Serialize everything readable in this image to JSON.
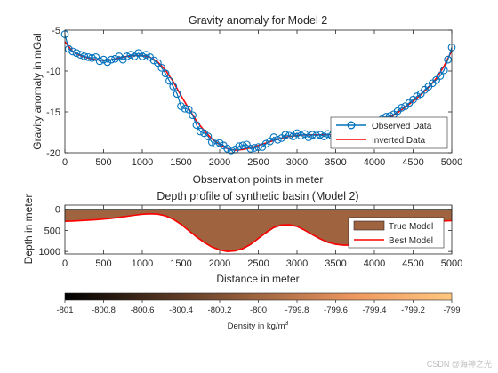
{
  "chart_data": [
    {
      "type": "line",
      "title": "Gravity anomaly for Model 2",
      "xlabel": "Observation points in meter",
      "ylabel": "Gravity anomaly in mGal",
      "xlim": [
        0,
        5000
      ],
      "ylim": [
        -20,
        -5
      ],
      "xticks": [
        "0",
        "500",
        "1000",
        "1500",
        "2000",
        "2500",
        "3000",
        "3500",
        "4000",
        "4500",
        "5000"
      ],
      "yticks": [
        "-5",
        "-10",
        "-15",
        "-20"
      ],
      "legend": {
        "position": "bottom-right",
        "entries": [
          "Observed Data",
          "Inverted Data"
        ]
      },
      "series": [
        {
          "name": "Observed Data",
          "style": "line-with-circle-markers",
          "color": "#0072bd",
          "x": [
            0,
            50,
            100,
            150,
            200,
            250,
            300,
            350,
            400,
            450,
            500,
            550,
            600,
            650,
            700,
            750,
            800,
            850,
            900,
            950,
            1000,
            1050,
            1100,
            1150,
            1200,
            1250,
            1300,
            1350,
            1400,
            1450,
            1500,
            1550,
            1600,
            1650,
            1700,
            1750,
            1800,
            1850,
            1900,
            1950,
            2000,
            2050,
            2100,
            2150,
            2200,
            2250,
            2300,
            2350,
            2400,
            2450,
            2500,
            2550,
            2600,
            2650,
            2700,
            2750,
            2800,
            2850,
            2900,
            2950,
            3000,
            3050,
            3100,
            3150,
            3200,
            3250,
            3300,
            3350,
            3400,
            3450,
            3500,
            3550,
            3600,
            3650,
            3700,
            3750,
            3800,
            3850,
            3900,
            3950,
            4000,
            4050,
            4100,
            4150,
            4200,
            4250,
            4300,
            4350,
            4400,
            4450,
            4500,
            4550,
            4600,
            4650,
            4700,
            4750,
            4800,
            4850,
            4900,
            4950,
            5000
          ],
          "y": [
            -5.5,
            -7.3,
            -7.6,
            -7.8,
            -8.0,
            -8.2,
            -8.3,
            -8.4,
            -8.3,
            -8.8,
            -8.6,
            -8.9,
            -8.6,
            -8.5,
            -8.2,
            -8.6,
            -8.2,
            -8.0,
            -8.2,
            -7.8,
            -8.2,
            -8.0,
            -8.3,
            -8.7,
            -9.0,
            -9.6,
            -10.3,
            -11.2,
            -11.9,
            -12.8,
            -14.3,
            -14.6,
            -14.7,
            -15.4,
            -16.6,
            -17.4,
            -17.6,
            -18.0,
            -18.7,
            -18.9,
            -18.8,
            -19.1,
            -19.5,
            -19.7,
            -19.6,
            -19.2,
            -19.1,
            -19.0,
            -19.5,
            -19.4,
            -19.3,
            -19.3,
            -18.9,
            -18.6,
            -18.1,
            -18.4,
            -18.2,
            -17.8,
            -17.9,
            -18.0,
            -17.6,
            -17.9,
            -17.7,
            -18.1,
            -17.8,
            -17.9,
            -17.8,
            -18.0,
            -17.7,
            -17.9,
            -17.7,
            -17.8,
            -17.6,
            -17.9,
            -17.8,
            -17.7,
            -17.4,
            -17.5,
            -17.3,
            -17.0,
            -16.8,
            -16.4,
            -15.9,
            -15.6,
            -15.5,
            -15.3,
            -14.9,
            -14.5,
            -14.3,
            -13.9,
            -13.5,
            -13.1,
            -12.8,
            -12.3,
            -11.9,
            -11.5,
            -11.1,
            -10.6,
            -9.9,
            -8.6,
            -7.1
          ]
        },
        {
          "name": "Inverted Data",
          "style": "line",
          "color": "#ff0000",
          "x": [
            0,
            100,
            200,
            300,
            400,
            500,
            600,
            700,
            800,
            900,
            1000,
            1100,
            1200,
            1300,
            1400,
            1500,
            1600,
            1700,
            1800,
            1900,
            2000,
            2100,
            2200,
            2300,
            2400,
            2500,
            2600,
            2700,
            2800,
            2900,
            3000,
            3100,
            3200,
            3300,
            3400,
            3500,
            3600,
            3700,
            3800,
            3900,
            4000,
            4100,
            4200,
            4300,
            4400,
            4500,
            4600,
            4700,
            4800,
            4900,
            5000
          ],
          "y": [
            -6.4,
            -7.6,
            -8.1,
            -8.4,
            -8.6,
            -8.7,
            -8.6,
            -8.4,
            -8.2,
            -8.1,
            -8.1,
            -8.3,
            -8.9,
            -9.9,
            -11.3,
            -13.0,
            -14.6,
            -16.1,
            -17.3,
            -18.3,
            -19.0,
            -19.5,
            -19.7,
            -19.6,
            -19.4,
            -19.1,
            -18.8,
            -18.5,
            -18.2,
            -18.0,
            -17.9,
            -17.8,
            -17.8,
            -17.8,
            -17.8,
            -17.8,
            -17.7,
            -17.6,
            -17.4,
            -17.1,
            -16.7,
            -16.2,
            -15.7,
            -15.1,
            -14.4,
            -13.7,
            -12.9,
            -12.0,
            -10.9,
            -9.4,
            -7.5
          ]
        }
      ]
    },
    {
      "type": "area",
      "title": "Depth profile of synthetic basin (Model 2)",
      "xlabel": "Distance in meter",
      "ylabel": "Depth in meter",
      "xlim": [
        0,
        5000
      ],
      "ylim": [
        0,
        1000
      ],
      "y_reversed": true,
      "xticks": [
        "0",
        "500",
        "1000",
        "1500",
        "2000",
        "2500",
        "3000",
        "3500",
        "4000",
        "4500",
        "5000"
      ],
      "yticks": [
        "0",
        "500",
        "1000"
      ],
      "legend": {
        "position": "top-right",
        "entries": [
          "True Model",
          "Best Model"
        ]
      },
      "series": [
        {
          "name": "True Model",
          "style": "filled-area",
          "color": "#a0633f",
          "x": [
            0,
            100,
            200,
            300,
            400,
            500,
            600,
            700,
            800,
            900,
            1000,
            1100,
            1200,
            1300,
            1400,
            1500,
            1600,
            1700,
            1800,
            1900,
            2000,
            2100,
            2200,
            2300,
            2400,
            2500,
            2600,
            2700,
            2800,
            2900,
            3000,
            3100,
            3200,
            3300,
            3400,
            3500,
            3600,
            3700,
            3800,
            3900,
            4000,
            4100,
            4200,
            4300,
            4400,
            4500,
            4600,
            4700,
            4800,
            4900,
            5000
          ],
          "y": [
            280,
            275,
            265,
            255,
            245,
            230,
            215,
            190,
            165,
            140,
            115,
            105,
            110,
            150,
            230,
            350,
            500,
            650,
            780,
            890,
            960,
            1000,
            990,
            940,
            840,
            700,
            560,
            440,
            380,
            370,
            410,
            500,
            610,
            710,
            790,
            830,
            850,
            845,
            830,
            800,
            760,
            700,
            630,
            560,
            490,
            420,
            360,
            320,
            290,
            275,
            270
          ]
        },
        {
          "name": "Best Model",
          "style": "line",
          "color": "#ff0000",
          "x": [
            0,
            100,
            200,
            300,
            400,
            500,
            600,
            700,
            800,
            900,
            1000,
            1100,
            1200,
            1300,
            1400,
            1500,
            1600,
            1700,
            1800,
            1900,
            2000,
            2100,
            2200,
            2300,
            2400,
            2500,
            2600,
            2700,
            2800,
            2900,
            3000,
            3100,
            3200,
            3300,
            3400,
            3500,
            3600,
            3700,
            3800,
            3900,
            4000,
            4100,
            4200,
            4300,
            4400,
            4500,
            4600,
            4700,
            4800,
            4900,
            5000
          ],
          "y": [
            285,
            278,
            268,
            258,
            246,
            232,
            215,
            192,
            166,
            140,
            118,
            108,
            115,
            155,
            235,
            355,
            505,
            655,
            785,
            895,
            965,
            1000,
            985,
            930,
            830,
            690,
            550,
            430,
            370,
            365,
            405,
            495,
            600,
            700,
            780,
            830,
            850,
            850,
            835,
            805,
            765,
            705,
            635,
            565,
            495,
            425,
            365,
            320,
            290,
            275,
            268
          ]
        }
      ]
    },
    {
      "type": "colorbar",
      "label": "Density in kg/m",
      "label_superscript": "3",
      "range": [
        -801,
        -799
      ],
      "ticks": [
        "-801",
        "-800.8",
        "-800.6",
        "-800.4",
        "-800.2",
        "-800",
        "-799.8",
        "-799.6",
        "-799.4",
        "-799.2",
        "-799"
      ],
      "colormap": "copper"
    }
  ],
  "watermark": "CSDN @海神之光",
  "colors": {
    "observed": "#0072bd",
    "inverted": "#ff0000",
    "basin_fill": "#a0633f"
  }
}
